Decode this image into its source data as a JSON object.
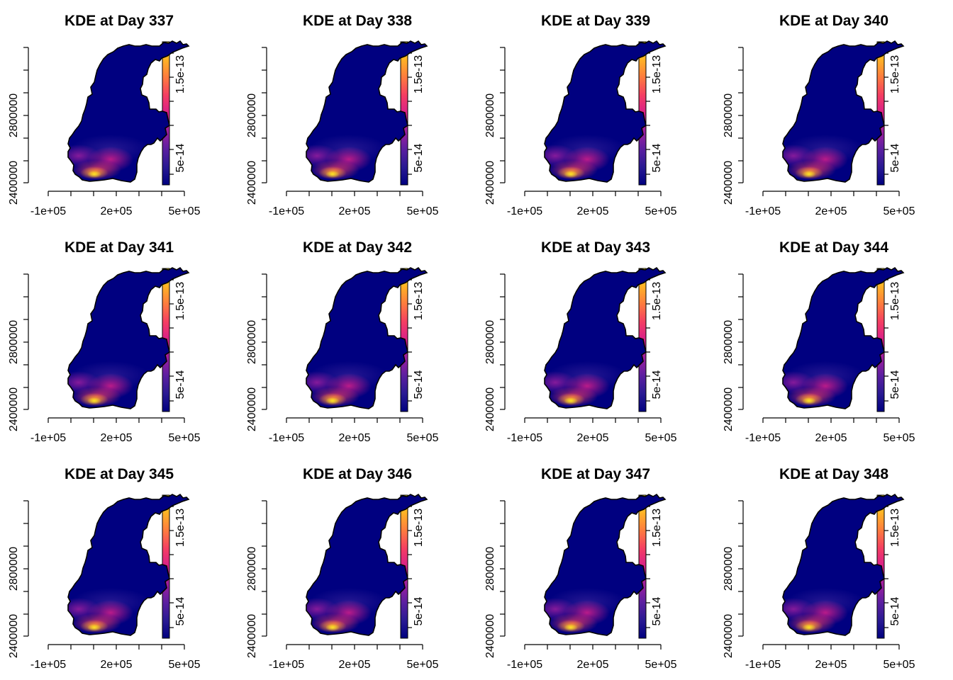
{
  "layout": {
    "rows": 3,
    "cols": 4
  },
  "colors": {
    "background": "#ffffff",
    "outline": "#000000",
    "colormap": [
      "#000080",
      "#2a1a93",
      "#5b1fa0",
      "#9c1f9f",
      "#d81f8a",
      "#f43d63",
      "#fd7a3f",
      "#ffb226",
      "#ffe924"
    ]
  },
  "chart_data": [
    {
      "type": "heatmap",
      "title": "KDE at Day 337",
      "x_ticks": [
        "-1e+05",
        "2e+05",
        "5e+05"
      ],
      "y_ticks": [
        "2400000",
        "2800000"
      ],
      "colorbar": {
        "ticks": [
          "5e-14",
          "1.5e-13"
        ],
        "range": [
          0,
          1.8e-13
        ]
      },
      "peak_density": 1.7e-13
    },
    {
      "type": "heatmap",
      "title": "KDE at Day 338",
      "x_ticks": [
        "-1e+05",
        "2e+05",
        "5e+05"
      ],
      "y_ticks": [
        "2400000",
        "2800000"
      ],
      "colorbar": {
        "ticks": [
          "5e-14",
          "1.5e-13"
        ],
        "range": [
          0,
          1.8e-13
        ]
      },
      "peak_density": 1.7e-13
    },
    {
      "type": "heatmap",
      "title": "KDE at Day 339",
      "x_ticks": [
        "-1e+05",
        "2e+05",
        "5e+05"
      ],
      "y_ticks": [
        "2400000",
        "2800000"
      ],
      "colorbar": {
        "ticks": [
          "5e-14",
          "1.5e-13"
        ],
        "range": [
          0,
          1.8e-13
        ]
      },
      "peak_density": 1.7e-13
    },
    {
      "type": "heatmap",
      "title": "KDE at Day 340",
      "x_ticks": [
        "-1e+05",
        "2e+05",
        "5e+05"
      ],
      "y_ticks": [
        "2400000",
        "2800000"
      ],
      "colorbar": {
        "ticks": [
          "5e-14",
          "1.5e-13"
        ],
        "range": [
          0,
          1.8e-13
        ]
      },
      "peak_density": 1.7e-13
    },
    {
      "type": "heatmap",
      "title": "KDE at Day 341",
      "x_ticks": [
        "-1e+05",
        "2e+05",
        "5e+05"
      ],
      "y_ticks": [
        "2400000",
        "2800000"
      ],
      "colorbar": {
        "ticks": [
          "5e-14",
          "1.5e-13"
        ],
        "range": [
          0,
          1.8e-13
        ]
      },
      "peak_density": 1.7e-13
    },
    {
      "type": "heatmap",
      "title": "KDE at Day 342",
      "x_ticks": [
        "-1e+05",
        "2e+05",
        "5e+05"
      ],
      "y_ticks": [
        "2400000",
        "2800000"
      ],
      "colorbar": {
        "ticks": [
          "5e-14",
          "1.5e-13"
        ],
        "range": [
          0,
          1.8e-13
        ]
      },
      "peak_density": 1.7e-13
    },
    {
      "type": "heatmap",
      "title": "KDE at Day 343",
      "x_ticks": [
        "-1e+05",
        "2e+05",
        "5e+05"
      ],
      "y_ticks": [
        "2400000",
        "2800000"
      ],
      "colorbar": {
        "ticks": [
          "5e-14",
          "1.5e-13"
        ],
        "range": [
          0,
          1.8e-13
        ]
      },
      "peak_density": 1.7e-13
    },
    {
      "type": "heatmap",
      "title": "KDE at Day 344",
      "x_ticks": [
        "-1e+05",
        "2e+05",
        "5e+05"
      ],
      "y_ticks": [
        "2400000",
        "2800000"
      ],
      "colorbar": {
        "ticks": [
          "5e-14",
          "1.5e-13"
        ],
        "range": [
          0,
          1.8e-13
        ]
      },
      "peak_density": 1.7e-13
    },
    {
      "type": "heatmap",
      "title": "KDE at Day 345",
      "x_ticks": [
        "-1e+05",
        "2e+05",
        "5e+05"
      ],
      "y_ticks": [
        "2400000",
        "2800000"
      ],
      "colorbar": {
        "ticks": [
          "5e-14",
          "1.5e-13"
        ],
        "range": [
          0,
          1.8e-13
        ]
      },
      "peak_density": 1.7e-13
    },
    {
      "type": "heatmap",
      "title": "KDE at Day 346",
      "x_ticks": [
        "-1e+05",
        "2e+05",
        "5e+05"
      ],
      "y_ticks": [
        "2400000",
        "2800000"
      ],
      "colorbar": {
        "ticks": [
          "5e-14",
          "1.5e-13"
        ],
        "range": [
          0,
          1.8e-13
        ]
      },
      "peak_density": 1.7e-13
    },
    {
      "type": "heatmap",
      "title": "KDE at Day 347",
      "x_ticks": [
        "-1e+05",
        "2e+05",
        "5e+05"
      ],
      "y_ticks": [
        "2400000",
        "2800000"
      ],
      "colorbar": {
        "ticks": [
          "5e-14",
          "1.5e-13"
        ],
        "range": [
          0,
          1.8e-13
        ]
      },
      "peak_density": 1.7e-13
    },
    {
      "type": "heatmap",
      "title": "KDE at Day 348",
      "x_ticks": [
        "-1e+05",
        "2e+05",
        "5e+05"
      ],
      "y_ticks": [
        "2400000",
        "2800000"
      ],
      "colorbar": {
        "ticks": [
          "5e-14",
          "1.5e-13"
        ],
        "range": [
          0,
          1.8e-13
        ]
      },
      "peak_density": 1.7e-13
    }
  ]
}
